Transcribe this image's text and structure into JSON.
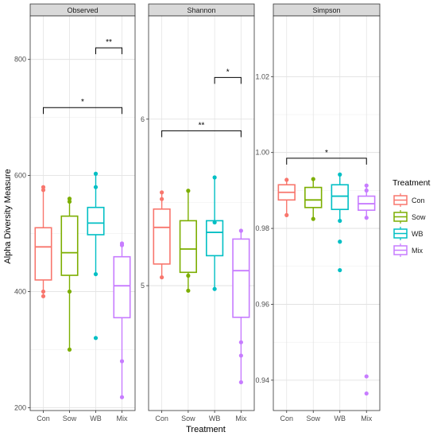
{
  "chart_data": {
    "type": "boxplot",
    "xlabel": "Treatment",
    "ylabel": "Alpha Diversity Measure",
    "categories": [
      "Con",
      "Sow",
      "WB",
      "Mix"
    ],
    "colors": {
      "Con": "#F8766D",
      "Sow": "#7CAE00",
      "WB": "#00BFC4",
      "Mix": "#C77CFF"
    },
    "legend": {
      "title": "Treatment",
      "position": "right",
      "entries": [
        "Con",
        "Sow",
        "WB",
        "Mix"
      ]
    },
    "grid": true,
    "panels": [
      {
        "title": "Observed",
        "ylim": [
          195,
          875
        ],
        "yticks": [
          200,
          400,
          600,
          800
        ],
        "ytick_labels": [
          "200",
          "400",
          "600",
          "800"
        ],
        "boxes": [
          {
            "group": "Con",
            "whisker_low": 392,
            "q1": 420,
            "median": 477,
            "q3": 510,
            "whisker_high": 580,
            "points": [
              392,
              400,
              575,
              580
            ],
            "outliers": []
          },
          {
            "group": "Sow",
            "whisker_low": 300,
            "q1": 428,
            "median": 467,
            "q3": 530,
            "whisker_high": 560,
            "points": [
              300,
              400,
              555,
              560
            ],
            "outliers": []
          },
          {
            "group": "WB",
            "whisker_low": 430,
            "q1": 498,
            "median": 518,
            "q3": 545,
            "whisker_high": 603,
            "points": [
              430,
              580,
              603
            ],
            "outliers": [
              320
            ]
          },
          {
            "group": "Mix",
            "whisker_low": 218,
            "q1": 355,
            "median": 410,
            "q3": 460,
            "whisker_high": 483,
            "points": [
              218,
              280,
              480,
              483
            ],
            "outliers": []
          }
        ],
        "brackets": [
          {
            "from": "WB",
            "to": "Mix",
            "y": 820,
            "label": "**"
          },
          {
            "from": "Con",
            "to": "Mix",
            "y": 717,
            "label": "*"
          }
        ]
      },
      {
        "title": "Shannon",
        "ylim": [
          4.25,
          6.62
        ],
        "yticks": [
          5,
          6
        ],
        "ytick_labels": [
          "5",
          "6"
        ],
        "boxes": [
          {
            "group": "Con",
            "whisker_low": 5.05,
            "q1": 5.13,
            "median": 5.35,
            "q3": 5.46,
            "whisker_high": 5.56,
            "points": [
              5.05,
              5.52,
              5.56
            ],
            "outliers": []
          },
          {
            "group": "Sow",
            "whisker_low": 4.97,
            "q1": 5.08,
            "median": 5.22,
            "q3": 5.39,
            "whisker_high": 5.57,
            "points": [
              4.97,
              5.06,
              5.57
            ],
            "outliers": []
          },
          {
            "group": "WB",
            "whisker_low": 4.98,
            "q1": 5.18,
            "median": 5.32,
            "q3": 5.39,
            "whisker_high": 5.65,
            "points": [
              4.98,
              5.38,
              5.65
            ],
            "outliers": []
          },
          {
            "group": "Mix",
            "whisker_low": 4.42,
            "q1": 4.81,
            "median": 5.09,
            "q3": 5.28,
            "whisker_high": 5.33,
            "points": [
              4.42,
              4.58,
              4.66,
              5.33
            ],
            "outliers": []
          }
        ],
        "brackets": [
          {
            "from": "WB",
            "to": "Mix",
            "y": 6.25,
            "label": "*"
          },
          {
            "from": "Con",
            "to": "Mix",
            "y": 5.93,
            "label": "**"
          }
        ]
      },
      {
        "title": "Simpson",
        "ylim": [
          0.932,
          1.036
        ],
        "yticks": [
          0.94,
          0.96,
          0.98,
          1.0,
          1.02
        ],
        "ytick_labels": [
          "0.94",
          "0.96",
          "0.98",
          "1.00",
          "1.02"
        ],
        "boxes": [
          {
            "group": "Con",
            "whisker_low": 0.9835,
            "q1": 0.9875,
            "median": 0.9895,
            "q3": 0.9915,
            "whisker_high": 0.9928,
            "points": [
              0.9835,
              0.9928
            ],
            "outliers": []
          },
          {
            "group": "Sow",
            "whisker_low": 0.9825,
            "q1": 0.9855,
            "median": 0.9875,
            "q3": 0.9908,
            "whisker_high": 0.993,
            "points": [
              0.9825,
              0.993
            ],
            "outliers": []
          },
          {
            "group": "WB",
            "whisker_low": 0.982,
            "q1": 0.985,
            "median": 0.9885,
            "q3": 0.9915,
            "whisker_high": 0.9942,
            "points": [
              0.982,
              0.9942
            ],
            "outliers": [
              0.9765,
              0.969
            ]
          },
          {
            "group": "Mix",
            "whisker_low": 0.9828,
            "q1": 0.9848,
            "median": 0.9865,
            "q3": 0.9885,
            "whisker_high": 0.9913,
            "points": [
              0.9828,
              0.99,
              0.9913
            ],
            "outliers": [
              0.941,
              0.9365
            ]
          }
        ],
        "brackets": [
          {
            "from": "Con",
            "to": "Mix",
            "y": 0.9985,
            "label": "*"
          }
        ]
      }
    ]
  }
}
